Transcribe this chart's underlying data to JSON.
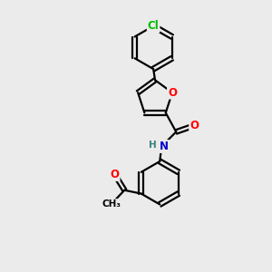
{
  "background_color": "#ebebeb",
  "bond_color": "#000000",
  "bond_width": 1.6,
  "atom_colors": {
    "O": "#ff0000",
    "N": "#0000cd",
    "Cl": "#00bb00",
    "C": "#000000",
    "H": "#3a8080"
  },
  "font_size": 8.5,
  "font_size_cl": 8.5,
  "font_size_small": 7.5
}
